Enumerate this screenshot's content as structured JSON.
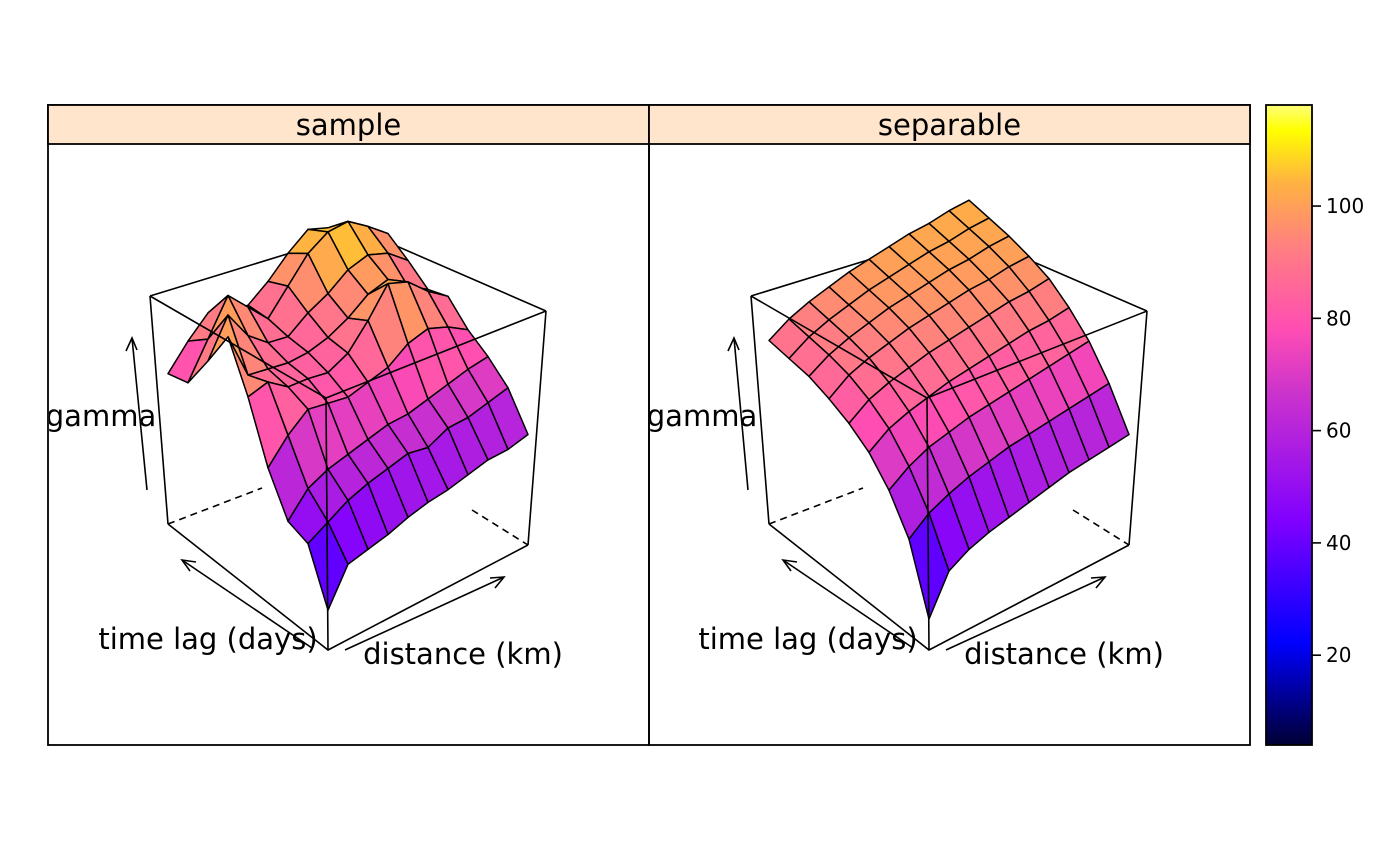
{
  "chart_data": {
    "type": "surface3d",
    "panels": [
      {
        "strip_label": "sample",
        "xlabel": "time lag (days)",
        "ylabel": "distance (km)",
        "zlabel": "gamma",
        "z": [
          [
            22,
            38,
            40,
            42,
            45,
            47,
            48,
            50,
            52,
            52,
            54
          ],
          [
            45,
            50,
            55,
            58,
            60,
            62,
            60,
            64,
            64,
            66,
            68
          ],
          [
            48,
            58,
            62,
            64,
            66,
            68,
            68,
            70,
            72,
            74,
            75
          ],
          [
            65,
            75,
            82,
            80,
            78,
            80,
            82,
            88,
            90,
            86,
            80
          ],
          [
            90,
            92,
            85,
            84,
            82,
            86,
            96,
            108,
            104,
            95,
            88
          ],
          [
            110,
            88,
            86,
            84,
            84,
            86,
            90,
            96,
            98,
            90,
            84
          ],
          [
            92,
            108,
            94,
            86,
            84,
            90,
            94,
            100,
            102,
            98,
            90
          ],
          [
            75,
            90,
            105,
            95,
            85,
            95,
            105,
            110,
            110,
            103,
            95
          ],
          [
            72,
            82,
            90,
            86,
            84,
            90,
            98,
            104,
            100,
            92,
            84
          ]
        ]
      },
      {
        "strip_label": "separable",
        "xlabel": "time lag (days)",
        "ylabel": "distance (km)",
        "zlabel": "gamma",
        "z": [
          [
            18,
            35,
            40,
            43,
            45,
            47,
            49,
            51,
            52,
            53,
            54
          ],
          [
            47,
            54,
            58,
            61,
            63,
            65,
            66,
            67,
            68,
            69,
            70
          ],
          [
            62,
            68,
            72,
            74,
            76,
            77,
            78,
            79,
            80,
            81,
            82
          ],
          [
            72,
            78,
            81,
            83,
            85,
            86,
            87,
            88,
            89,
            89,
            90
          ],
          [
            78,
            84,
            87,
            89,
            91,
            92,
            93,
            94,
            95,
            95,
            96
          ],
          [
            82,
            88,
            91,
            93,
            95,
            96,
            97,
            98,
            98,
            99,
            99
          ],
          [
            85,
            90,
            93,
            95,
            97,
            98,
            99,
            100,
            100,
            101,
            101
          ],
          [
            86,
            91,
            94,
            96,
            98,
            99,
            100,
            101,
            101,
            102,
            102
          ],
          [
            87,
            92,
            95,
            97,
            99,
            100,
            101,
            102,
            102,
            103,
            103
          ]
        ]
      }
    ],
    "zlim": [
      4,
      118
    ],
    "colorkey": {
      "range": [
        4,
        118
      ],
      "ticks": [
        20,
        40,
        60,
        80,
        100
      ],
      "tick_labels": [
        "20",
        "40",
        "60",
        "80",
        "100"
      ],
      "position": "right"
    },
    "colors": {
      "strip_bg": "#ffe5cc",
      "low": "#000033",
      "high": "#ffff60"
    }
  }
}
